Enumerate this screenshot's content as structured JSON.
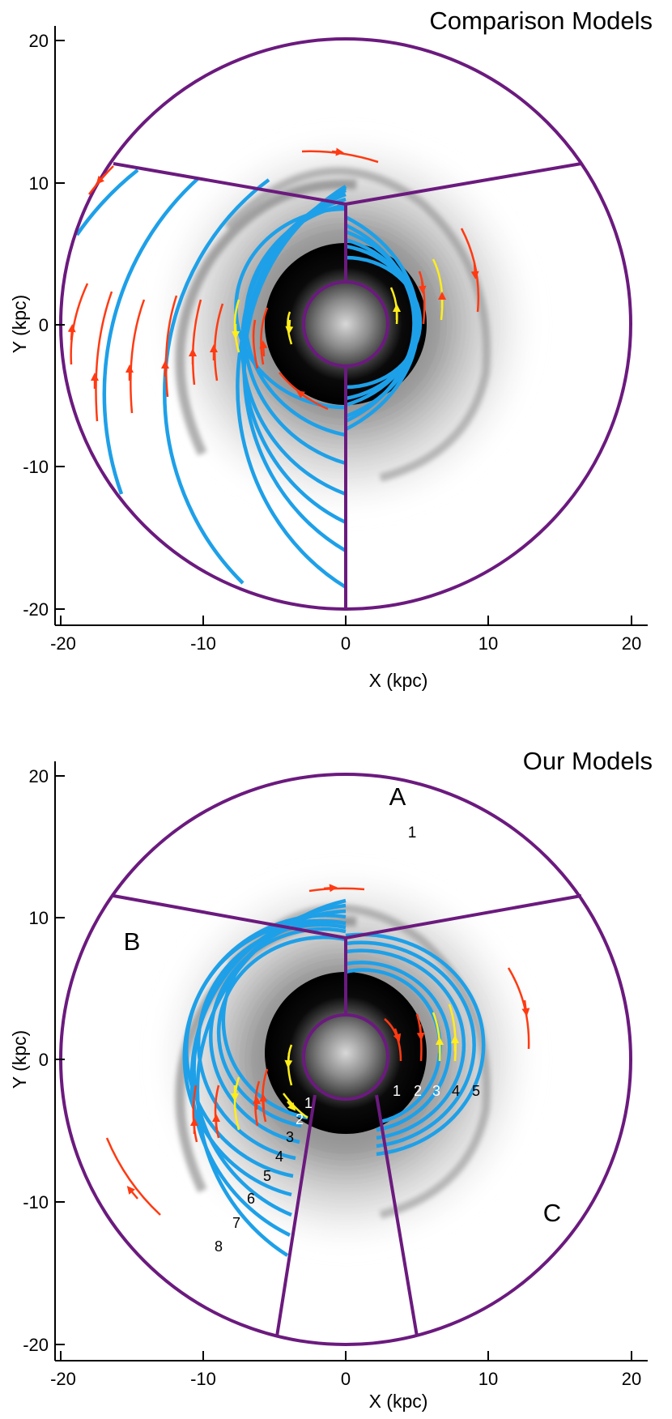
{
  "colors": {
    "boundary": "#6b1a7e",
    "arm": "#1ea0e8",
    "flow_red": "#ff3a12",
    "flow_yellow": "#ffee1a",
    "axis": "#000000"
  },
  "panels": [
    {
      "title": "Comparison Models",
      "xlabel": "X (kpc)",
      "ylabel": "Y (kpc)",
      "xticks": [
        "-20",
        "-10",
        "0",
        "10",
        "20"
      ],
      "yticks": [
        "20",
        "10",
        "0",
        "-10",
        "-20"
      ],
      "region_labels": [],
      "arm_numbers": []
    },
    {
      "title": "Our Models",
      "xlabel": "X (kpc)",
      "ylabel": "Y (kpc)",
      "xticks": [
        "-20",
        "-10",
        "0",
        "10",
        "20"
      ],
      "yticks": [
        "20",
        "10",
        "0",
        "-10",
        "-20"
      ],
      "region_labels": [
        "A",
        "B",
        "C"
      ],
      "sub_label": "1",
      "arm_numbers": [
        "1",
        "2",
        "3",
        "4",
        "5",
        "6",
        "7",
        "8"
      ],
      "right_arm_numbers": [
        "1",
        "2",
        "3",
        "4",
        "5"
      ]
    }
  ]
}
